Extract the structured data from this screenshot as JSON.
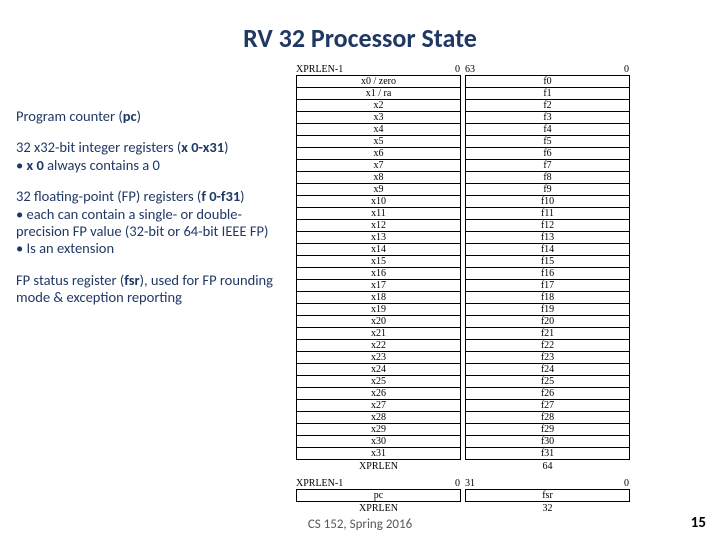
{
  "title": "RV 32 Processor State",
  "left": {
    "p1_a": "Program counter (",
    "p1_b": "pc",
    "p1_c": ")",
    "p2_a": "32 x32-bit integer registers (",
    "p2_b": "x 0-x31",
    "p2_c": ")",
    "p2_bullet_a": "• ",
    "p2_bullet_b": "x 0",
    "p2_bullet_c": " always contains a 0",
    "p3_a": "32 floating-point (FP) registers (",
    "p3_b": "f 0-f31",
    "p3_c": ")",
    "p3_bullet1": "• each can contain a single- or double-precision FP value (32-bit or 64-bit IEEE FP)",
    "p3_bullet2": "• Is an extension",
    "p4_a": "FP status register (",
    "p4_b": "fsr",
    "p4_c": "), used for FP rounding mode & exception reporting"
  },
  "xheader_left": "XPRLEN-1",
  "xheader_right": "0",
  "fheader_left": "63",
  "fheader_right": "0",
  "xregs": [
    "x0 / zero",
    "x1 / ra",
    "x2",
    "x3",
    "x4",
    "x5",
    "x6",
    "x7",
    "x8",
    "x9",
    "x10",
    "x11",
    "x12",
    "x13",
    "x14",
    "x15",
    "x16",
    "x17",
    "x18",
    "x19",
    "x20",
    "x21",
    "x22",
    "x23",
    "x24",
    "x25",
    "x26",
    "x27",
    "x28",
    "x29",
    "x30",
    "x31"
  ],
  "fregs": [
    "f0",
    "f1",
    "f2",
    "f3",
    "f4",
    "f5",
    "f6",
    "f7",
    "f8",
    "f9",
    "f10",
    "f11",
    "f12",
    "f13",
    "f14",
    "f15",
    "f16",
    "f17",
    "f18",
    "f19",
    "f20",
    "f21",
    "f22",
    "f23",
    "f24",
    "f25",
    "f26",
    "f27",
    "f28",
    "f29",
    "f30",
    "f31"
  ],
  "xfooter": "XPRLEN",
  "ffooter": "64",
  "pc_hl": "XPRLEN-1",
  "pc_hr": "0",
  "pc_val": "pc",
  "pc_footer": "XPRLEN",
  "fsr_hl": "31",
  "fsr_hr": "0",
  "fsr_val": "fsr",
  "fsr_footer": "32",
  "footer": "CS 152, Spring 2016",
  "pagenum": "15"
}
